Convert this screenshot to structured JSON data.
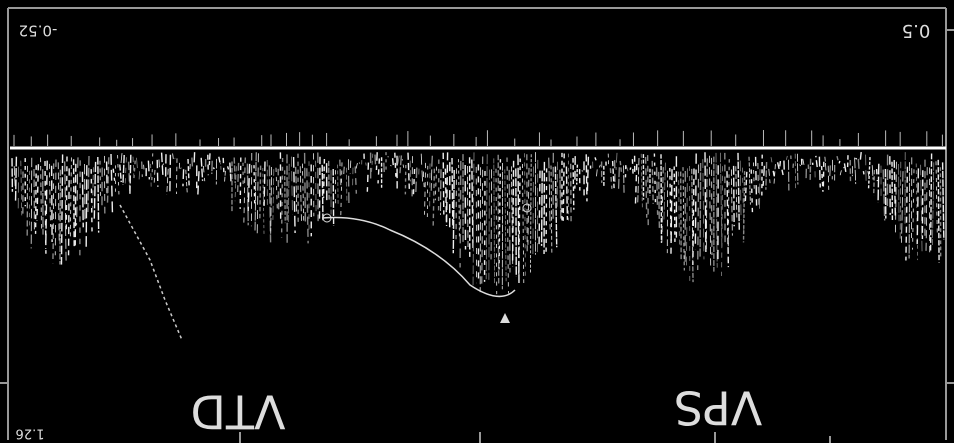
{
  "labels": {
    "top_left": "-0.52",
    "top_right": "0.5",
    "bottom_left": "1.26",
    "left_marker": "VTD",
    "right_marker": "VPS"
  }
}
